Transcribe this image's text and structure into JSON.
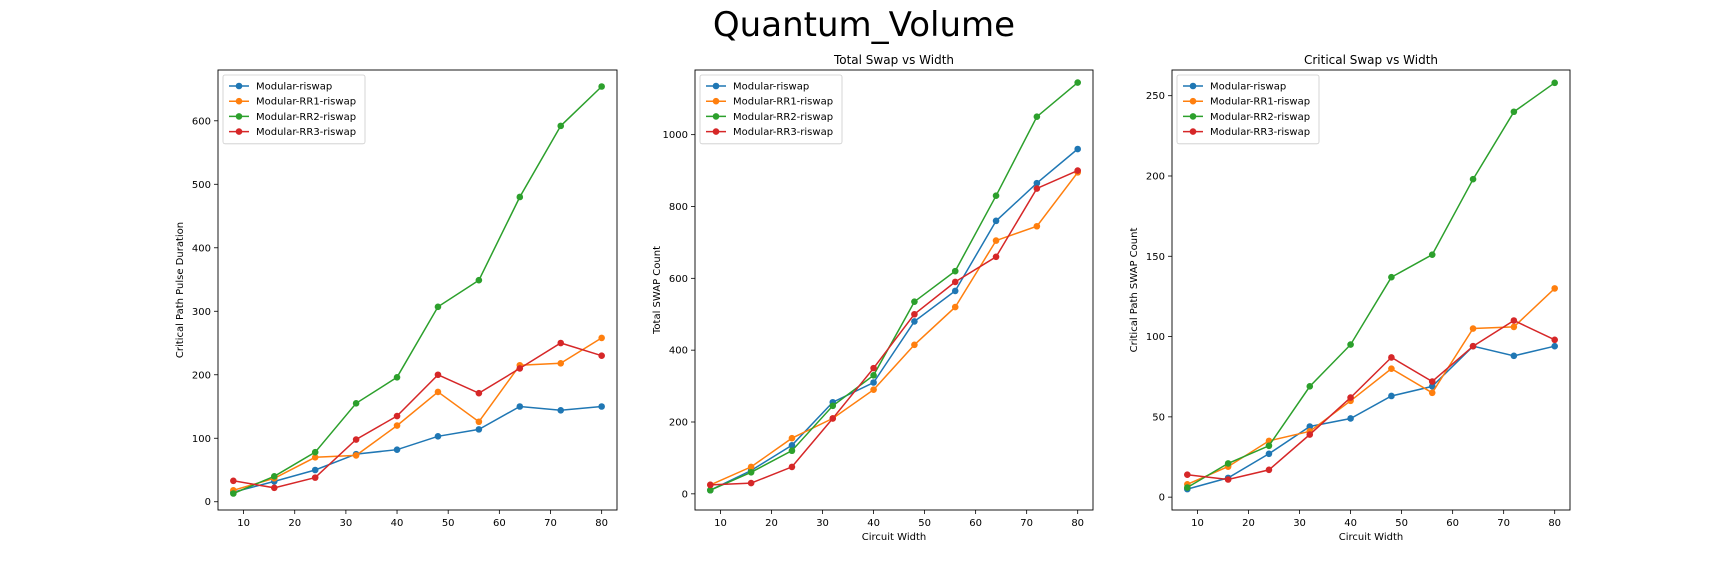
{
  "figure": {
    "title": "Quantum_Volume"
  },
  "chart_data": [
    {
      "type": "line",
      "title": "",
      "xlabel": "",
      "ylabel": "Critical Path Pulse Duration",
      "xlim": [
        5,
        83
      ],
      "ylim": [
        -13,
        680
      ],
      "xticks": [
        10,
        20,
        30,
        40,
        50,
        60,
        70,
        80
      ],
      "yticks": [
        0,
        100,
        200,
        300,
        400,
        500,
        600
      ],
      "grid": false,
      "legend_position": "upper-left",
      "x": [
        8,
        16,
        24,
        32,
        40,
        48,
        56,
        64,
        72,
        80
      ],
      "series": [
        {
          "name": "Modular-riswap",
          "color": "#1f77b4",
          "values": [
            15,
            32,
            50,
            75,
            82,
            103,
            114,
            150,
            144,
            150
          ]
        },
        {
          "name": "Modular-RR1-riswap",
          "color": "#ff7f0e",
          "values": [
            18,
            37,
            70,
            73,
            120,
            173,
            126,
            215,
            218,
            258
          ]
        },
        {
          "name": "Modular-RR2-riswap",
          "color": "#2ca02c",
          "values": [
            13,
            40,
            78,
            155,
            196,
            307,
            349,
            480,
            592,
            654
          ]
        },
        {
          "name": "Modular-RR3-riswap",
          "color": "#d62728",
          "values": [
            33,
            22,
            38,
            98,
            135,
            200,
            171,
            210,
            250,
            230
          ]
        }
      ]
    },
    {
      "type": "line",
      "title": "Total Swap vs Width",
      "xlabel": "Circuit Width",
      "ylabel": "Total SWAP Count",
      "xlim": [
        5,
        83
      ],
      "ylim": [
        -45,
        1180
      ],
      "xticks": [
        10,
        20,
        30,
        40,
        50,
        60,
        70,
        80
      ],
      "yticks": [
        0,
        200,
        400,
        600,
        800,
        1000
      ],
      "grid": false,
      "legend_position": "upper-left",
      "x": [
        8,
        16,
        24,
        32,
        40,
        48,
        56,
        64,
        72,
        80
      ],
      "series": [
        {
          "name": "Modular-riswap",
          "color": "#1f77b4",
          "values": [
            10,
            65,
            135,
            255,
            310,
            480,
            565,
            760,
            865,
            960
          ]
        },
        {
          "name": "Modular-RR1-riswap",
          "color": "#ff7f0e",
          "values": [
            25,
            75,
            155,
            210,
            290,
            415,
            520,
            705,
            745,
            895
          ]
        },
        {
          "name": "Modular-RR2-riswap",
          "color": "#2ca02c",
          "values": [
            10,
            60,
            120,
            245,
            330,
            535,
            620,
            830,
            1050,
            1145
          ]
        },
        {
          "name": "Modular-RR3-riswap",
          "color": "#d62728",
          "values": [
            25,
            30,
            75,
            210,
            350,
            500,
            590,
            660,
            850,
            900
          ]
        }
      ]
    },
    {
      "type": "line",
      "title": "Critical Swap vs Width",
      "xlabel": "Circuit Width",
      "ylabel": "Critical Path SWAP Count",
      "xlim": [
        5,
        83
      ],
      "ylim": [
        -8,
        266
      ],
      "xticks": [
        10,
        20,
        30,
        40,
        50,
        60,
        70,
        80
      ],
      "yticks": [
        0,
        50,
        100,
        150,
        200,
        250
      ],
      "grid": false,
      "legend_position": "upper-left",
      "x": [
        8,
        16,
        24,
        32,
        40,
        48,
        56,
        64,
        72,
        80
      ],
      "series": [
        {
          "name": "Modular-riswap",
          "color": "#1f77b4",
          "values": [
            5,
            12,
            27,
            44,
            49,
            63,
            69,
            94,
            88,
            94
          ]
        },
        {
          "name": "Modular-RR1-riswap",
          "color": "#ff7f0e",
          "values": [
            8,
            19,
            35,
            41,
            60,
            80,
            65,
            105,
            106,
            130
          ]
        },
        {
          "name": "Modular-RR2-riswap",
          "color": "#2ca02c",
          "values": [
            6,
            21,
            32,
            69,
            95,
            137,
            151,
            198,
            240,
            258
          ]
        },
        {
          "name": "Modular-RR3-riswap",
          "color": "#d62728",
          "values": [
            14,
            11,
            17,
            39,
            62,
            87,
            72,
            94,
            110,
            98
          ]
        }
      ]
    }
  ]
}
